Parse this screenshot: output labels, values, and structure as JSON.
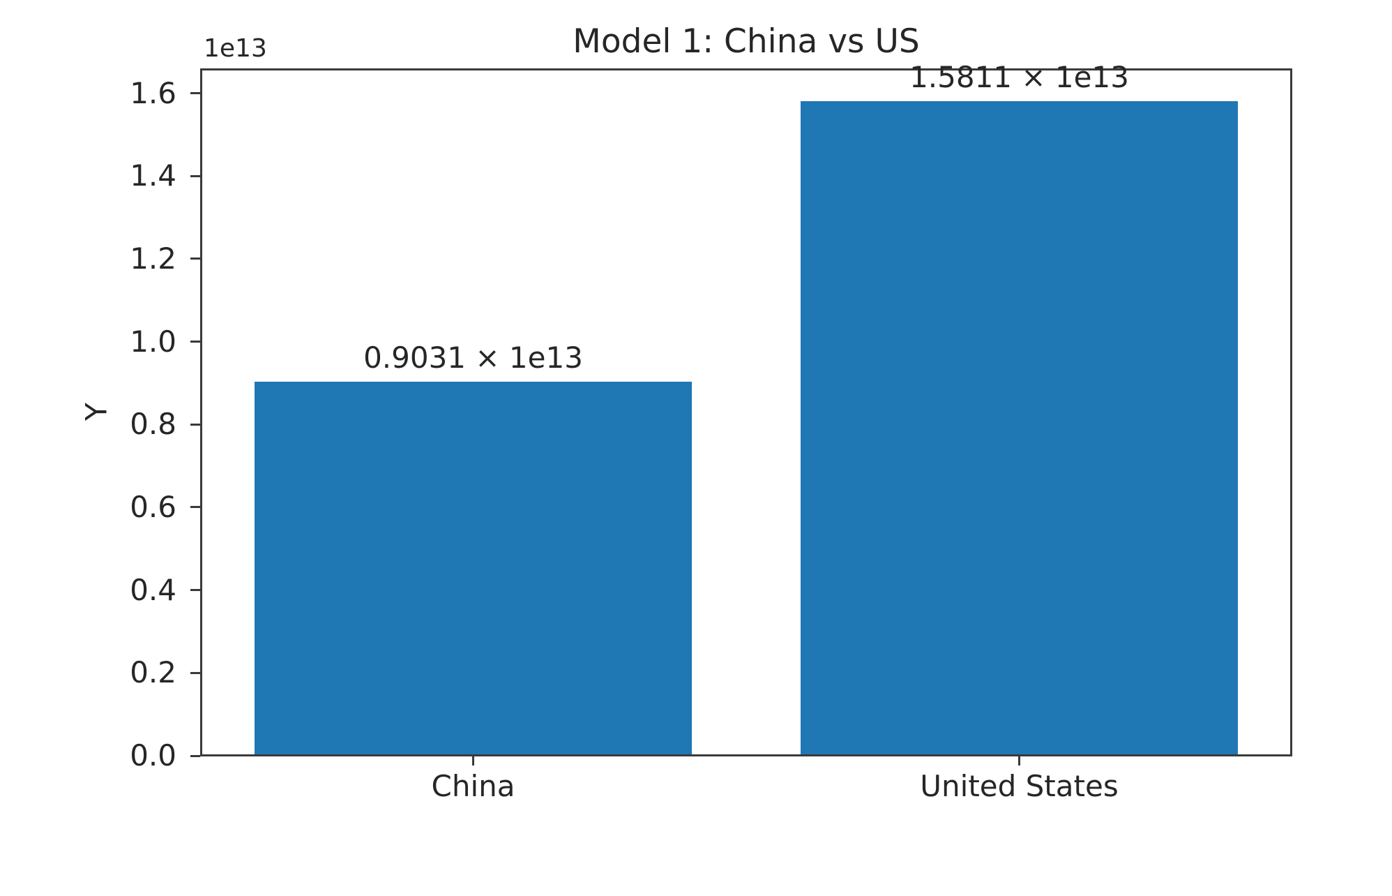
{
  "figure": {
    "background": "#ffffff"
  },
  "chart_data": {
    "type": "bar",
    "title": "Model 1: China vs US",
    "xlabel": "",
    "ylabel": "Y",
    "offset_text": "1e13",
    "categories": [
      "China",
      "United States"
    ],
    "values": [
      9031000000000,
      15811000000000
    ],
    "bar_value_labels": [
      "0.9031 × 1e13",
      "1.5811 × 1e13"
    ],
    "ylim": [
      0,
      16600000000000
    ],
    "yticks": {
      "values": [
        0,
        2000000000000,
        4000000000000,
        6000000000000,
        8000000000000,
        10000000000000,
        12000000000000,
        14000000000000,
        16000000000000
      ],
      "labels": [
        "0.0",
        "0.2",
        "0.4",
        "0.6",
        "0.8",
        "1.0",
        "1.2",
        "1.4",
        "1.6"
      ]
    },
    "grid": false,
    "legend": false,
    "bar_color": "#1f77b4",
    "text_color": "#262626",
    "spine_color": "#3a3a3a"
  }
}
